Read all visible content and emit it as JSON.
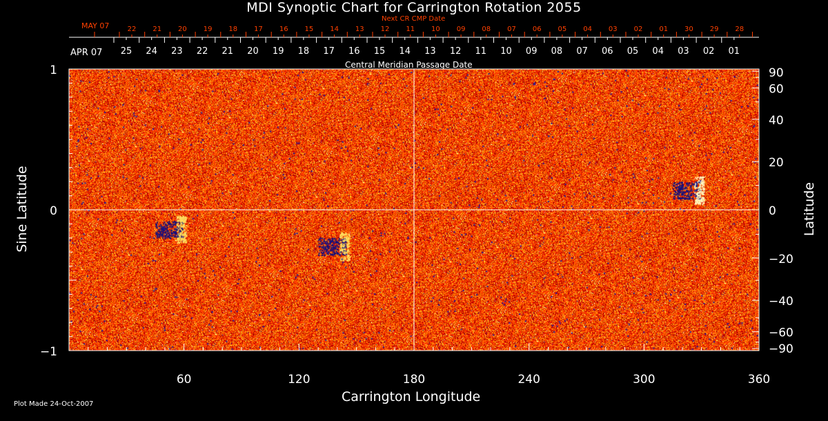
{
  "chart_data": {
    "type": "heatmap",
    "title": "MDI Synoptic Chart for Carrington Rotation 2055",
    "xlabel": "Carrington Longitude",
    "ylabel_left": "Sine Latitude",
    "ylabel_right": "Latitude",
    "xlim": [
      0,
      360
    ],
    "ylim": [
      -1,
      1
    ],
    "x_ticks": [
      "60",
      "120",
      "180",
      "240",
      "300",
      "360"
    ],
    "x_tick_values": [
      60,
      120,
      180,
      240,
      300,
      360
    ],
    "y_left_ticks": [
      "1",
      "0",
      "−1"
    ],
    "y_left_tick_values": [
      1,
      0,
      -1
    ],
    "y_right_ticks": [
      "90",
      "60",
      "40",
      "20",
      "0",
      "−20",
      "−40",
      "−60",
      "−90"
    ],
    "y_right_tick_values": [
      90,
      60,
      40,
      20,
      0,
      -20,
      -40,
      -60,
      -90
    ],
    "top_axis": {
      "label": "Central Meridian Passage Date",
      "month_label": "APR 07",
      "dates": [
        "25",
        "24",
        "23",
        "22",
        "21",
        "20",
        "19",
        "18",
        "17",
        "16",
        "15",
        "14",
        "13",
        "12",
        "11",
        "10",
        "09",
        "08",
        "07",
        "06",
        "05",
        "04",
        "03",
        "02",
        "01"
      ]
    },
    "next_cr_axis": {
      "label": "Next CR CMP Date",
      "month_label": "MAY 07",
      "dates": [
        "22",
        "21",
        "20",
        "19",
        "18",
        "17",
        "16",
        "15",
        "14",
        "13",
        "12",
        "11",
        "10",
        "09",
        "08",
        "07",
        "06",
        "05",
        "04",
        "03",
        "02",
        "01",
        "30",
        "29",
        "28"
      ],
      "color": "#ff4000"
    },
    "colormap": [
      "#1010a0",
      "#b00000",
      "#ff3000",
      "#ff8000",
      "#ffe040",
      "#ffffff"
    ],
    "active_regions": [
      {
        "longitude": 325,
        "latitude": 8,
        "note": "bipolar"
      },
      {
        "longitude": 55,
        "latitude": -8
      },
      {
        "longitude": 140,
        "latitude": -15
      }
    ]
  },
  "footer": {
    "plot_made": "Plot Made 24-Oct-2007"
  }
}
